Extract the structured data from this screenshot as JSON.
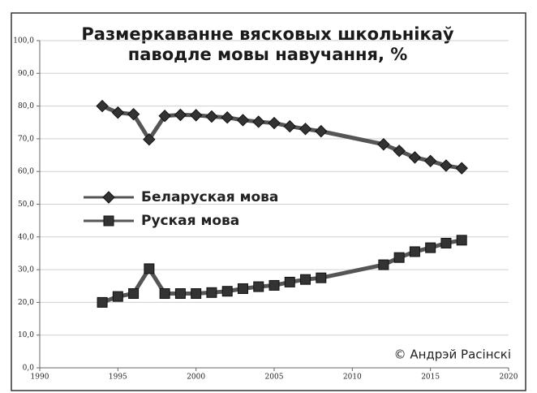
{
  "chart_data": {
    "type": "line",
    "title": [
      "Размеркаванне вясковых школьнікаў",
      "паводле мовы навучання, %"
    ],
    "x": [
      1994,
      1995,
      1996,
      1997,
      1998,
      1999,
      2000,
      2001,
      2002,
      2003,
      2004,
      2005,
      2006,
      2007,
      2008,
      2012,
      2013,
      2014,
      2015,
      2016,
      2017
    ],
    "series": [
      {
        "name": "Беларуская мова",
        "color": "#555555",
        "marker": "diamond",
        "values": [
          80.0,
          78.0,
          77.5,
          69.8,
          77.0,
          77.3,
          77.2,
          76.8,
          76.5,
          75.7,
          75.2,
          74.8,
          73.8,
          73.0,
          72.3,
          68.3,
          66.3,
          64.3,
          63.2,
          61.8,
          61.0
        ]
      },
      {
        "name": "Руская мова",
        "color": "#555555",
        "marker": "square",
        "values": [
          20.0,
          21.8,
          22.7,
          30.3,
          22.7,
          22.7,
          22.7,
          23.0,
          23.4,
          24.2,
          24.8,
          25.2,
          26.2,
          27.0,
          27.5,
          31.5,
          33.7,
          35.5,
          36.7,
          38.1,
          39.0
        ]
      }
    ],
    "xlim": [
      1990,
      2020
    ],
    "xticks": [
      1990,
      1995,
      2000,
      2005,
      2010,
      2015,
      2020
    ],
    "ylim": [
      0,
      100
    ],
    "yticks": [
      {
        "value": 0,
        "label": "0,0"
      },
      {
        "value": 10,
        "label": "10,0"
      },
      {
        "value": 20,
        "label": "20,0"
      },
      {
        "value": 30,
        "label": "30,0"
      },
      {
        "value": 40,
        "label": "40,0"
      },
      {
        "value": 50,
        "label": "50,0"
      },
      {
        "value": 60,
        "label": "60,0"
      },
      {
        "value": 70,
        "label": "70,0"
      },
      {
        "value": 80,
        "label": "80,0"
      },
      {
        "value": 90,
        "label": "90,0"
      },
      {
        "value": 100,
        "label": "100,0"
      }
    ],
    "grid": true,
    "annotation": "© Андрэй Расінскі"
  }
}
